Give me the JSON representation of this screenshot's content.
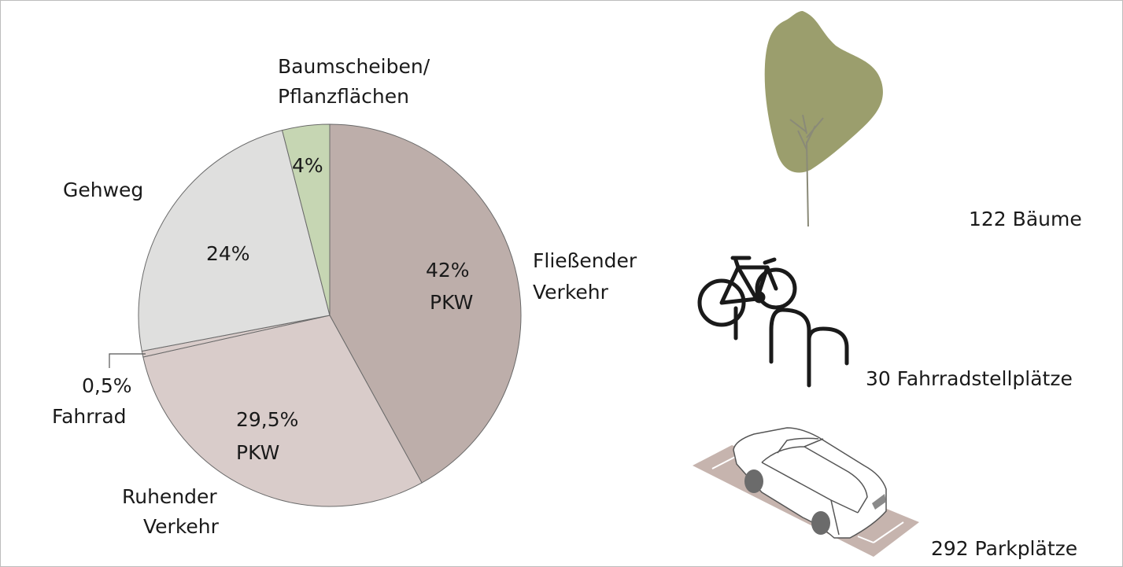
{
  "colors": {
    "fliessender": "#bdaeaa",
    "ruhender": "#d9ccca",
    "fahrrad": "#d9ccca",
    "gehweg": "#dfdfde",
    "baum": "#c6d6b3",
    "tree_crown": "#9b9e6d",
    "tree_trunk": "#8a8a78",
    "parking_pad": "#c6b4ae",
    "outline": "#6a6a6a"
  },
  "chart_data": {
    "type": "pie",
    "slices": [
      {
        "id": "fliessender",
        "value": 42,
        "color_key": "fliessender",
        "value_text": "42%",
        "sub_text": "PKW",
        "label_lines": [
          "Fließender",
          "Verkehr"
        ]
      },
      {
        "id": "ruhender",
        "value": 29.5,
        "color_key": "ruhender",
        "value_text": "29,5%",
        "sub_text": "PKW",
        "label_lines": [
          "Ruhender",
          "Verkehr"
        ]
      },
      {
        "id": "fahrrad",
        "value": 0.5,
        "color_key": "fahrrad",
        "value_text": "0,5%",
        "sub_text": "",
        "label_lines": [
          "Fahrrad"
        ]
      },
      {
        "id": "gehweg",
        "value": 24,
        "color_key": "gehweg",
        "value_text": "24%",
        "sub_text": "",
        "label_lines": [
          "Gehweg"
        ]
      },
      {
        "id": "baum",
        "value": 4,
        "color_key": "baum",
        "value_text": "4%",
        "sub_text": "",
        "label_lines": [
          "Baumscheiben/",
          "Pflanzflächen"
        ]
      }
    ]
  },
  "inventory": {
    "trees": {
      "label": "122 Bäume",
      "icon": "tree-icon"
    },
    "bikes": {
      "label": "30 Fahrradstellplätze",
      "icon": "bicycle-rack-icon"
    },
    "parking": {
      "label": "292 Parkplätze",
      "icon": "car-parking-icon"
    }
  }
}
